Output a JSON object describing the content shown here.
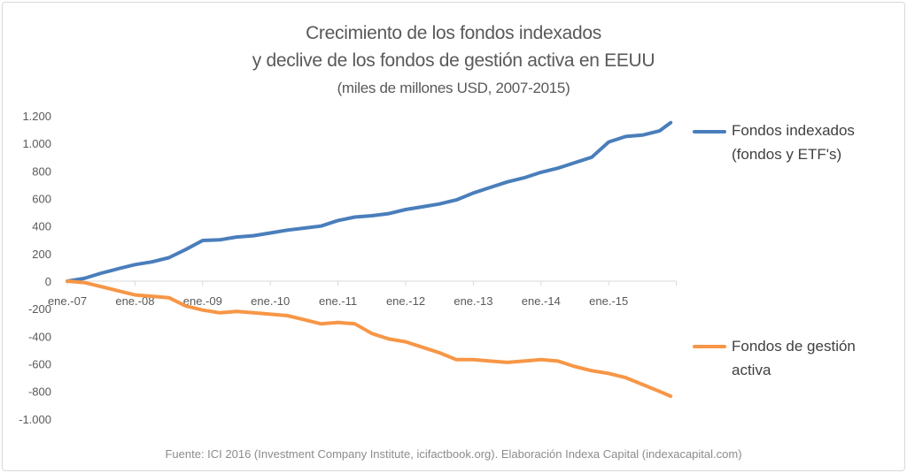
{
  "chart_data": {
    "type": "line",
    "title": "Crecimiento de los fondos indexados",
    "title_line2": "y declive de los fondos de gestión activa en EEUU",
    "subtitle": "(miles de millones USD, 2007-2015)",
    "xlabel": "",
    "ylabel": "",
    "ylim": [
      -1000,
      1200
    ],
    "yticks": [
      1200,
      1000,
      800,
      600,
      400,
      200,
      0,
      -200,
      -400,
      -600,
      -800,
      -1000
    ],
    "ytick_labels": [
      "1.200",
      "1.000",
      "800",
      "600",
      "400",
      "200",
      "0",
      "-200",
      "-400",
      "-600",
      "-800",
      "-1.000"
    ],
    "xtick_labels": [
      "ene.-07",
      "ene.-08",
      "ene.-09",
      "ene.-10",
      "ene.-11",
      "ene.-12",
      "ene.-13",
      "ene.-14",
      "ene.-15"
    ],
    "grid": false,
    "legend_position": "right",
    "x": [
      "2007-01",
      "2007-04",
      "2007-07",
      "2007-10",
      "2008-01",
      "2008-04",
      "2008-07",
      "2008-10",
      "2009-01",
      "2009-04",
      "2009-07",
      "2009-10",
      "2010-01",
      "2010-04",
      "2010-07",
      "2010-10",
      "2011-01",
      "2011-04",
      "2011-07",
      "2011-10",
      "2012-01",
      "2012-04",
      "2012-07",
      "2012-10",
      "2013-01",
      "2013-04",
      "2013-07",
      "2013-10",
      "2014-01",
      "2014-04",
      "2014-07",
      "2014-10",
      "2015-01",
      "2015-04",
      "2015-07",
      "2015-10",
      "2015-12"
    ],
    "series": [
      {
        "name": "Fondos indexados (fondos y ETF's)",
        "legend_lines": [
          "Fondos indexados",
          "(fondos y ETF's)"
        ],
        "color": "#4a7ebb",
        "values": [
          0,
          20,
          58,
          90,
          120,
          140,
          170,
          230,
          295,
          300,
          320,
          330,
          350,
          370,
          385,
          400,
          440,
          465,
          475,
          490,
          520,
          540,
          560,
          590,
          640,
          680,
          720,
          750,
          790,
          820,
          860,
          900,
          1010,
          1050,
          1060,
          1090,
          1150
        ]
      },
      {
        "name": "Fondos de gestión activa",
        "legend_lines": [
          "Fondos de gestión",
          "activa"
        ],
        "color": "#f79646",
        "values": [
          0,
          -10,
          -40,
          -70,
          -100,
          -110,
          -120,
          -180,
          -210,
          -230,
          -220,
          -230,
          -240,
          -250,
          -280,
          -310,
          -300,
          -310,
          -380,
          -420,
          -440,
          -480,
          -520,
          -570,
          -570,
          -580,
          -590,
          -580,
          -570,
          -580,
          -620,
          -650,
          -670,
          -700,
          -750,
          -800,
          -835
        ]
      }
    ]
  },
  "source": "Fuente: ICI 2016 (Investment Company Institute, icifactbook.org). Elaboración Indexa Capital (indexacapital.com)"
}
